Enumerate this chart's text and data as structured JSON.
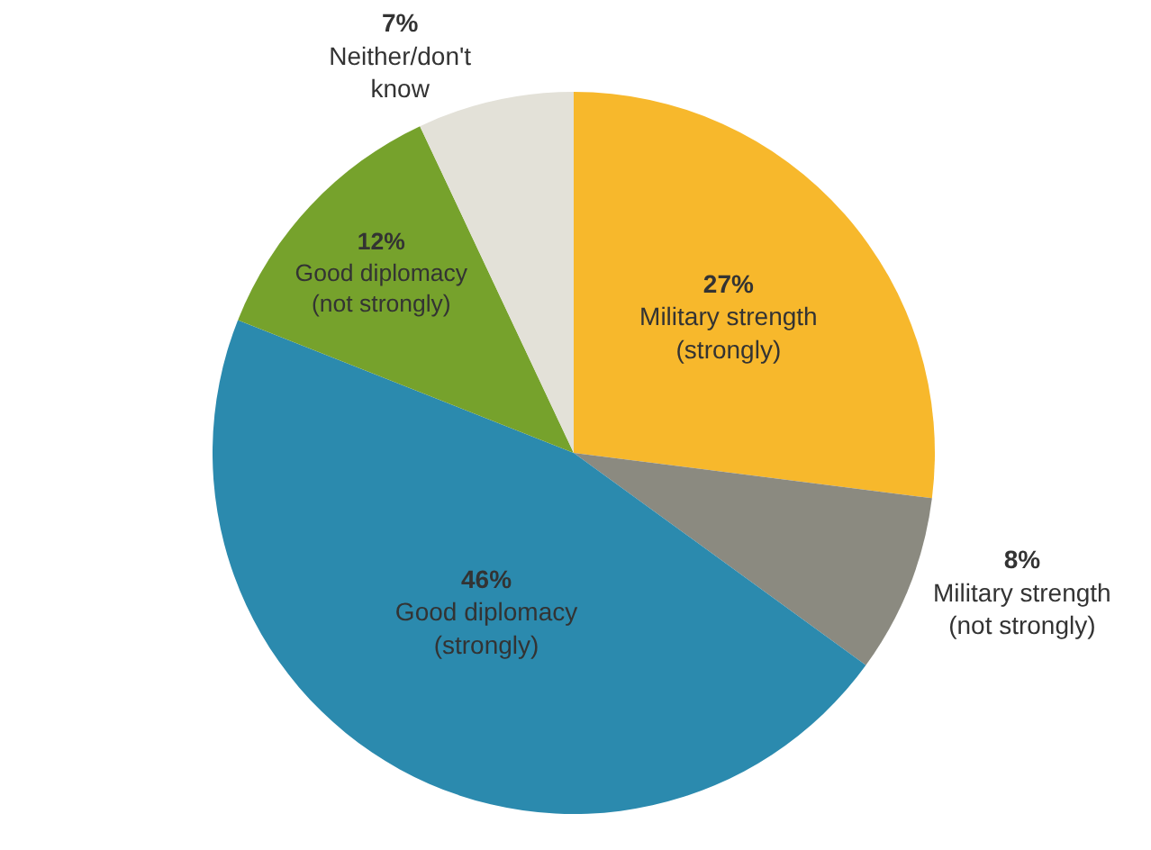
{
  "chart_data": {
    "type": "pie",
    "categories": [
      "Military strength (strongly)",
      "Military strength (not strongly)",
      "Good diplomacy (strongly)",
      "Good diplomacy (not strongly)",
      "Neither/don't know"
    ],
    "values": [
      27,
      8,
      46,
      12,
      7
    ],
    "value_labels": [
      "27%",
      "8%",
      "46%",
      "12%",
      "7%"
    ],
    "colors": [
      "#f7b82c",
      "#8b8a80",
      "#2b8aae",
      "#76a22c",
      "#e3e1d8"
    ],
    "legend": false
  }
}
